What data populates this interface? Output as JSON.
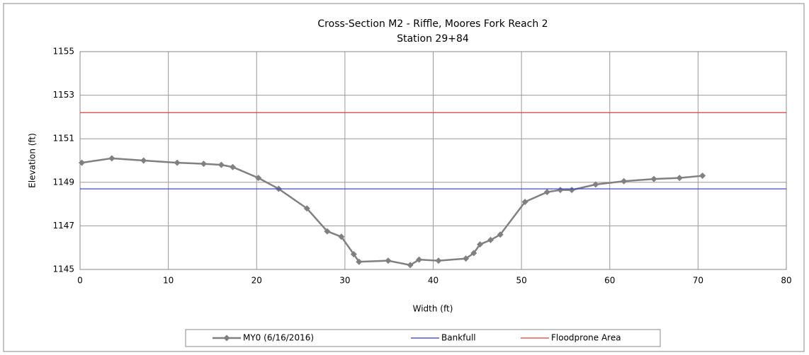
{
  "chart_data": {
    "type": "line",
    "title": "Cross-Section M2 - Riffle, Moores Fork Reach 2",
    "subtitle": "Station 29+84",
    "x_label": "Width (ft)",
    "y_label": "Elevation (ft)",
    "xlim": [
      0,
      80
    ],
    "xticks": [
      0,
      10,
      20,
      30,
      40,
      50,
      60,
      70,
      80
    ],
    "ylim": [
      1145,
      1155
    ],
    "yticks": [
      1145,
      1147,
      1149,
      1151,
      1153,
      1155
    ],
    "grid": true,
    "legend": "bottom",
    "series": [
      {
        "name": "MY0 (6/16/2016)",
        "color": "#808080",
        "marker": "diamond",
        "x": [
          0.2,
          3.6,
          7.2,
          11,
          14,
          16,
          17.3,
          20.2,
          22.5,
          25.7,
          28,
          29.6,
          31,
          31.6,
          34.9,
          37.4,
          38.4,
          40.6,
          43.7,
          44.6,
          45.3,
          46.5,
          47.6,
          50.4,
          52.9,
          54.4,
          55.7,
          58.4,
          61.6,
          65,
          67.9,
          70.5
        ],
        "values": [
          1149.9,
          1150.1,
          1150.0,
          1149.9,
          1149.85,
          1149.8,
          1149.7,
          1149.2,
          1148.7,
          1147.8,
          1146.75,
          1146.5,
          1145.7,
          1145.35,
          1145.4,
          1145.2,
          1145.45,
          1145.4,
          1145.5,
          1145.75,
          1146.15,
          1146.35,
          1146.6,
          1148.1,
          1148.55,
          1148.65,
          1148.65,
          1148.9,
          1149.05,
          1149.15,
          1149.2,
          1149.3
        ]
      },
      {
        "name": "Bankfull",
        "color": "#3333cc",
        "x": [
          0,
          80
        ],
        "values": [
          1148.7,
          1148.7
        ]
      },
      {
        "name": "Floodprone Area",
        "color": "#e03c3c",
        "x": [
          0,
          80
        ],
        "values": [
          1152.2,
          1152.2
        ]
      }
    ]
  }
}
